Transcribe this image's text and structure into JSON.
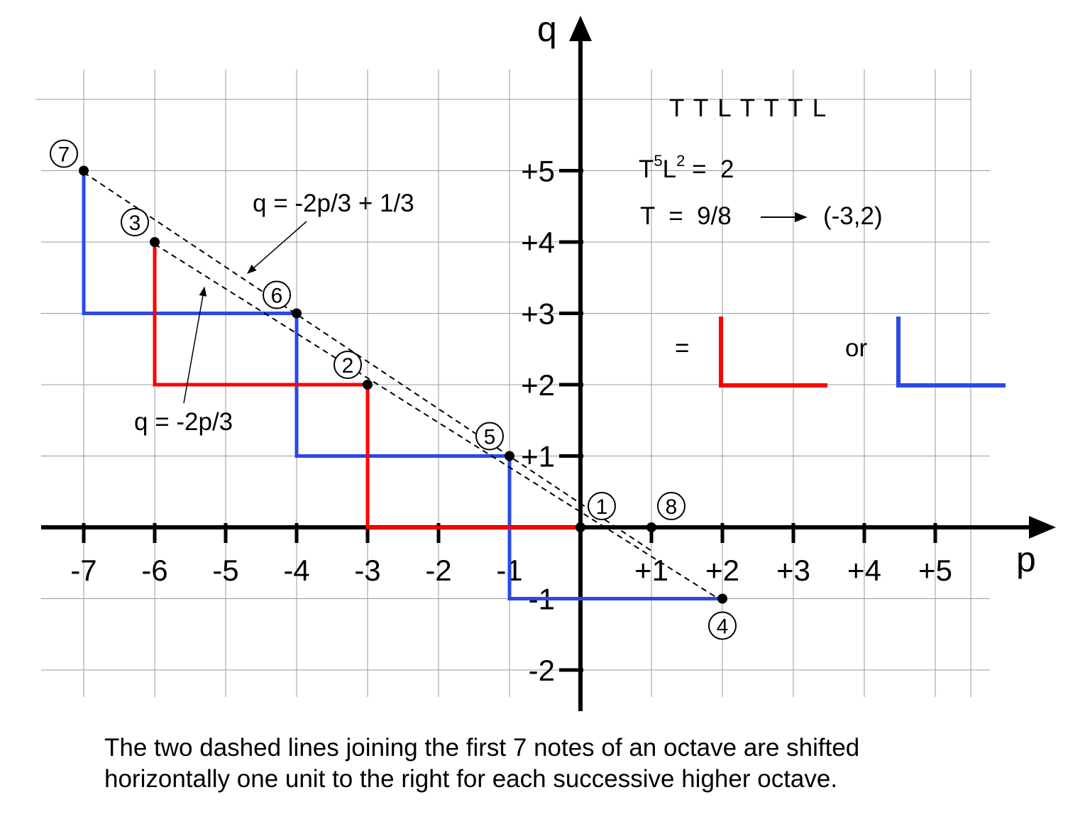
{
  "axes": {
    "x_name": "p",
    "y_name": "q",
    "x_ticks": [
      "-7",
      "-6",
      "-5",
      "-4",
      "-3",
      "-2",
      "-1",
      "+1",
      "+2",
      "+3",
      "+4",
      "+5"
    ],
    "y_ticks": [
      "+5",
      "+4",
      "+3",
      "+2",
      "+1",
      "-1",
      "-2"
    ]
  },
  "sequence_label": "T T L T T T L",
  "equation1": {
    "base1": "T",
    "exp1": "5",
    "base2": "L",
    "exp2": "2",
    "rhs": " =  2"
  },
  "equation2": {
    "lhs": "T  =  9/8",
    "rhs": "(-3,2)"
  },
  "equals_sign": "=",
  "or_label": "or",
  "line_labels": {
    "upper": "q = -2p/3 + 1/3",
    "lower": "q = -2p/3"
  },
  "notes": [
    {
      "label": "1",
      "p": 0,
      "q": 0
    },
    {
      "label": "2",
      "p": -3,
      "q": 2
    },
    {
      "label": "3",
      "p": -6,
      "q": 4
    },
    {
      "label": "4",
      "p": 2,
      "q": -1
    },
    {
      "label": "5",
      "p": -1,
      "q": 1
    },
    {
      "label": "6",
      "p": -4,
      "q": 3
    },
    {
      "label": "7",
      "p": -7,
      "q": 5
    },
    {
      "label": "8",
      "p": 1,
      "q": 0
    }
  ],
  "red_path": [
    [
      -6,
      4
    ],
    [
      -6,
      2
    ],
    [
      -3,
      2
    ],
    [
      -3,
      0
    ],
    [
      0,
      0
    ]
  ],
  "blue_path": [
    [
      -7,
      5
    ],
    [
      -7,
      3
    ],
    [
      -4,
      3
    ],
    [
      -4,
      1
    ],
    [
      -1,
      1
    ],
    [
      -1,
      -1
    ],
    [
      2,
      -1
    ]
  ],
  "colors": {
    "red": "#ff0000",
    "blue": "#2a49e6",
    "grid": "#9a9a9a",
    "axis": "#000000"
  },
  "caption": {
    "line1": "The two dashed lines joining the first 7 notes of an octave are shifted",
    "line2": "horizontally one unit to the right for each successive higher octave."
  }
}
